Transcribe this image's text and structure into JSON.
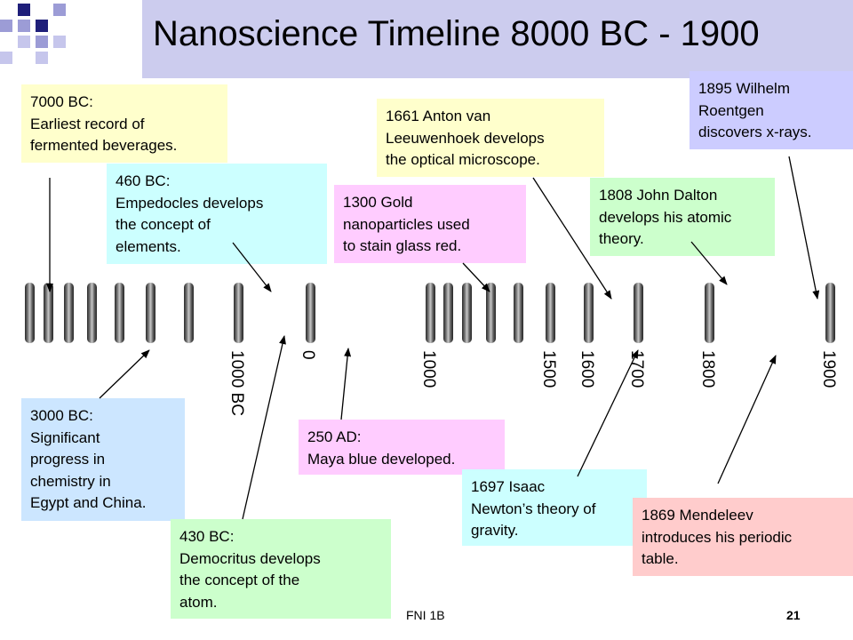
{
  "slide": {
    "title": "Nanoscience Timeline 8000 BC - 1900",
    "footer": "FNI 1B",
    "page_number": "21"
  },
  "events": [
    {
      "text": "7000 BC:\nEarliest record of\nfermented beverages.",
      "color": "#ffffcc"
    },
    {
      "text": "460 BC:\nEmpedocles develops\nthe concept of\nelements.",
      "color": "#ccffff"
    },
    {
      "text": "1300 Gold\nnanoparticles used\nto stain glass red.",
      "color": "#ffccff"
    },
    {
      "text": "1661 Anton van\nLeeuwenhoek develops\nthe optical microscope.",
      "color": "#ffffcc"
    },
    {
      "text": "1808 John Dalton\ndevelops his atomic\ntheory.",
      "color": "#ccffcc"
    },
    {
      "text": "1895 Wilhelm\nRoentgen\ndiscovers x-rays.",
      "color": "#ccccff"
    },
    {
      "text": "3000 BC:\nSignificant\nprogress in\nchemistry in\nEgypt and China.",
      "color": "#cce6ff"
    },
    {
      "text": "430 BC:\nDemocritus develops\nthe concept of the\natom.",
      "color": "#ccffcc"
    },
    {
      "text": "250 AD:\nMaya blue developed.",
      "color": "#ffccff"
    },
    {
      "text": "1697 Isaac\nNewton’s theory of\ngravity.",
      "color": "#ccffff"
    },
    {
      "text": "1869 Mendeleev\nintroduces his periodic\ntable.",
      "color": "#ffcccc"
    }
  ],
  "year_labels": [
    "1000 BC",
    "0",
    "1000",
    "1500",
    "1600",
    "1700",
    "1800",
    "1900"
  ]
}
